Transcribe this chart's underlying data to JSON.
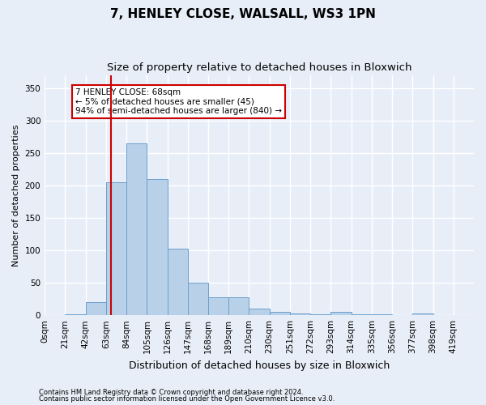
{
  "title1": "7, HENLEY CLOSE, WALSALL, WS3 1PN",
  "title2": "Size of property relative to detached houses in Bloxwich",
  "xlabel": "Distribution of detached houses by size in Bloxwich",
  "ylabel": "Number of detached properties",
  "bar_values": [
    0,
    2,
    20,
    205,
    265,
    210,
    103,
    50,
    28,
    28,
    10,
    5,
    3,
    2,
    5,
    2,
    2,
    0,
    3,
    0,
    0
  ],
  "bin_labels": [
    "0sqm",
    "21sqm",
    "42sqm",
    "63sqm",
    "84sqm",
    "105sqm",
    "126sqm",
    "147sqm",
    "168sqm",
    "189sqm",
    "210sqm",
    "230sqm",
    "251sqm",
    "272sqm",
    "293sqm",
    "314sqm",
    "335sqm",
    "356sqm",
    "377sqm",
    "398sqm",
    "419sqm"
  ],
  "bar_color": "#b8d0e8",
  "bar_edge_color": "#6a9fcf",
  "vline_x": 3.238,
  "vline_color": "#cc0000",
  "annotation_text": "7 HENLEY CLOSE: 68sqm\n← 5% of detached houses are smaller (45)\n94% of semi-detached houses are larger (840) →",
  "annotation_box_color": "#ffffff",
  "annotation_box_edge": "#cc0000",
  "ylim": [
    0,
    370
  ],
  "yticks": [
    0,
    50,
    100,
    150,
    200,
    250,
    300,
    350
  ],
  "footer1": "Contains HM Land Registry data © Crown copyright and database right 2024.",
  "footer2": "Contains public sector information licensed under the Open Government Licence v3.0.",
  "bg_color": "#e8eef8",
  "plot_bg_color": "#e8eef8",
  "grid_color": "#ffffff",
  "title1_fontsize": 11,
  "title2_fontsize": 9.5
}
